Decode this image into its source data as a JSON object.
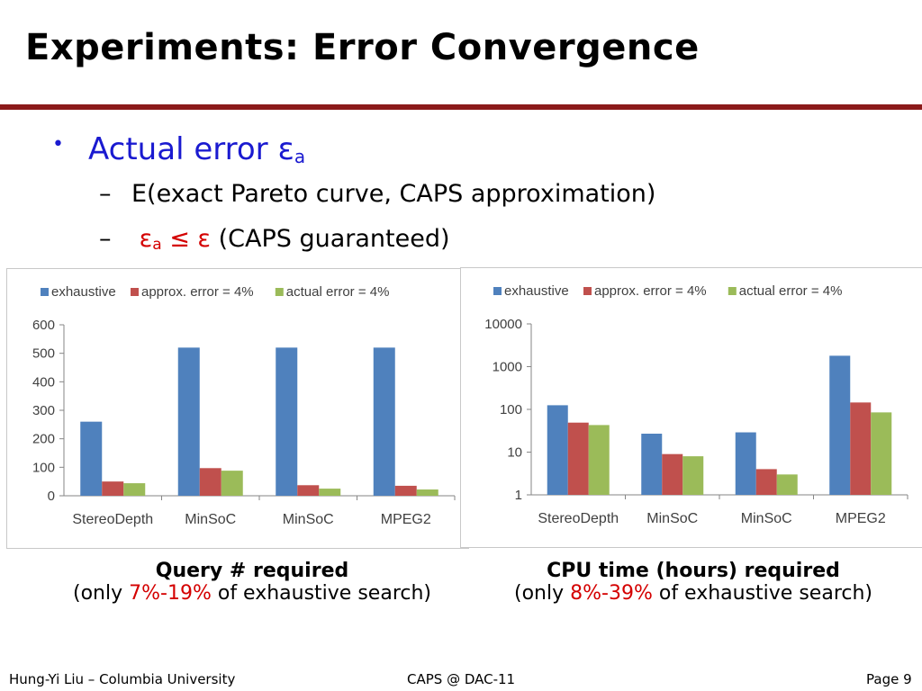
{
  "slide": {
    "title": "Experiments: Error Convergence",
    "bullet": {
      "label_prefix": "Actual error ε",
      "label_sub": "a"
    },
    "sub_bullet_1": {
      "text": "E(exact Pareto curve, CAPS approximation)"
    },
    "sub_bullet_2": {
      "eps": "ε",
      "eps_sub": "a",
      "op": " ≤ ε",
      "rest": " (CAPS guaranteed)"
    }
  },
  "captions": {
    "left_title": "Query # required",
    "left_pre": "(only ",
    "left_pct": "7%-19%",
    "left_post": " of exhaustive search)",
    "right_title": "CPU time (hours) required",
    "right_pre": "(only ",
    "right_pct": "8%-39%",
    "right_post": " of exhaustive search)"
  },
  "footer": {
    "left": "Hung-Yi Liu – Columbia University",
    "center": "CAPS @ DAC-11",
    "right": "Page 9"
  },
  "colors": {
    "exhaustive": "#4f81bd",
    "approx": "#c0504d",
    "actual": "#9bbb59"
  },
  "chart_data": [
    {
      "type": "bar",
      "categories": [
        "StereoDepth",
        "MinSoC",
        "MinSoC",
        "MPEG2"
      ],
      "series": [
        {
          "name": "exhaustive",
          "values": [
            260,
            520,
            520,
            520
          ]
        },
        {
          "name": "approx. error = 4%",
          "values": [
            50,
            97,
            37,
            35
          ]
        },
        {
          "name": "actual error = 4%",
          "values": [
            44,
            88,
            25,
            22
          ]
        }
      ],
      "ylim": [
        0,
        600
      ],
      "yticks": [
        "0",
        "100",
        "200",
        "300",
        "400",
        "500",
        "600"
      ],
      "scale": "linear",
      "grid": false,
      "legend": "top"
    },
    {
      "type": "bar",
      "categories": [
        "StereoDepth",
        "MinSoC",
        "MinSoC",
        "MPEG2"
      ],
      "series": [
        {
          "name": "exhaustive",
          "values": [
            125,
            27,
            29,
            1800
          ]
        },
        {
          "name": "approx. error = 4%",
          "values": [
            49,
            9,
            4,
            145
          ]
        },
        {
          "name": "actual error = 4%",
          "values": [
            43,
            8,
            3,
            85
          ]
        }
      ],
      "ylim": [
        1,
        10000
      ],
      "yticks": [
        "1",
        "10",
        "100",
        "1000",
        "10000"
      ],
      "scale": "log",
      "grid": false,
      "legend": "top"
    }
  ]
}
